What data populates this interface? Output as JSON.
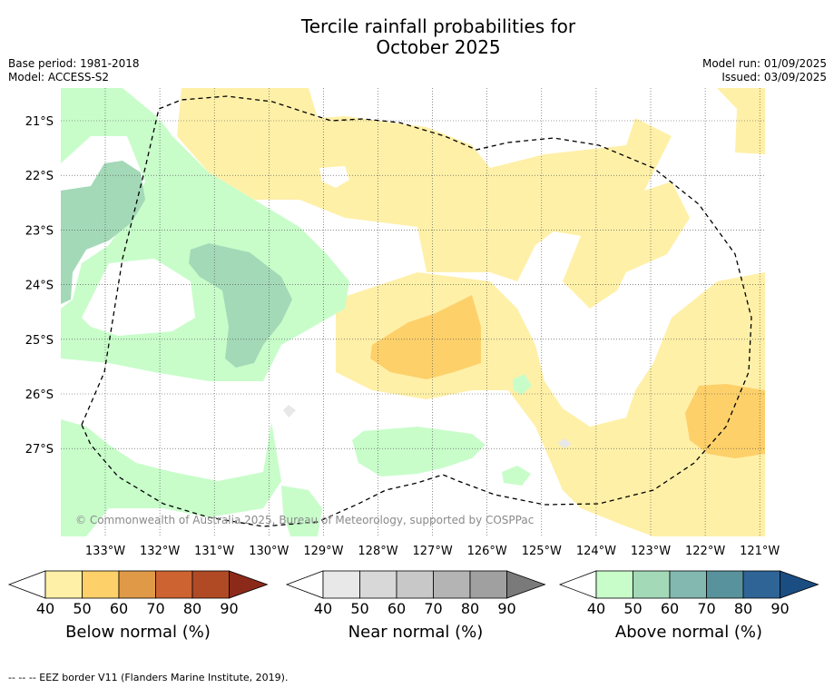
{
  "title_line1": "Tercile rainfall probabilities for",
  "title_line2": "October 2025",
  "base_period": "Base period: 1981-2018",
  "model": "Model: ACCESS-S2",
  "model_run": "Model run: 01/09/2025",
  "issued": "Issued: 03/09/2025",
  "copyright": "© Commonwealth of Australia 2025, Bureau of Meteorology, supported by COSPPac",
  "lat_labels": [
    "21°S",
    "22°S",
    "23°S",
    "24°S",
    "25°S",
    "26°S",
    "27°S"
  ],
  "lon_labels": [
    "133°W",
    "132°W",
    "131°W",
    "130°W",
    "129°W",
    "128°W",
    "127°W",
    "126°W",
    "125°W",
    "124°W",
    "123°W",
    "122°W",
    "121°W"
  ],
  "colorbars": [
    {
      "label": "Below normal (%)",
      "ticks": [
        "40",
        "50",
        "60",
        "70",
        "80",
        "90"
      ],
      "colors": [
        "#ffffff",
        "#fff0a8",
        "#fdd06a",
        "#e09a47",
        "#cc6331",
        "#b04a25",
        "#8c2a19"
      ]
    },
    {
      "label": "Near normal (%)",
      "ticks": [
        "40",
        "50",
        "60",
        "70",
        "80",
        "90"
      ],
      "colors": [
        "#ffffff",
        "#e8e8e8",
        "#d8d8d8",
        "#c8c8c8",
        "#b4b4b4",
        "#a0a0a0",
        "#7a7a7a"
      ]
    },
    {
      "label": "Above normal (%)",
      "ticks": [
        "40",
        "50",
        "60",
        "70",
        "80",
        "90"
      ],
      "colors": [
        "#ffffff",
        "#c8fdca",
        "#a3d9b7",
        "#82b8b0",
        "#58929c",
        "#2f6496",
        "#1a4d82"
      ]
    }
  ],
  "footer": "--  --  -- EEZ border V11 (Flanders Marine Institute, 2019).",
  "colors": {
    "below_40_50": "#fff0a8",
    "below_50_60": "#fdd06a",
    "above_40_50": "#c8fdca",
    "above_50_60": "#a3d9b7",
    "near_40_50": "#e8e8e8"
  }
}
